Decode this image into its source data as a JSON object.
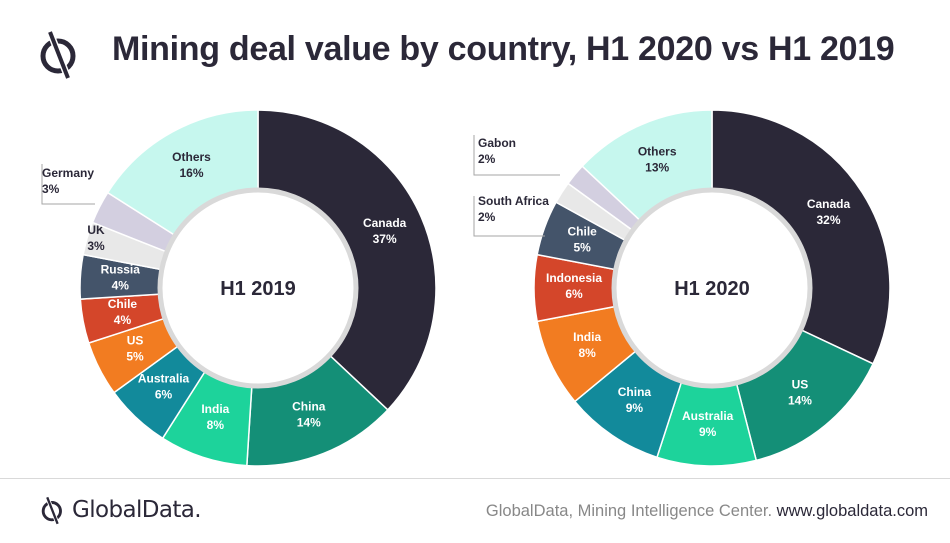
{
  "header": {
    "title": "Mining deal value by country, H1 2020 vs H1 2019"
  },
  "footer": {
    "brand": "GlobalData.",
    "source": "GlobalData, Mining Intelligence Center.",
    "url": "www.globaldata.com"
  },
  "chart_data": [
    {
      "type": "pie",
      "center_label": "H1 2019",
      "slices": [
        {
          "label": "Canada",
          "value": 37,
          "display": "37%",
          "color": "#2b2838",
          "text_color": "#ffffff",
          "callout": false
        },
        {
          "label": "China",
          "value": 14,
          "display": "14%",
          "color": "#148f77",
          "text_color": "#ffffff",
          "callout": false
        },
        {
          "label": "India",
          "value": 8,
          "display": "8%",
          "color": "#1dd39b",
          "text_color": "#ffffff",
          "callout": false
        },
        {
          "label": "Australia",
          "value": 6,
          "display": "6%",
          "color": "#128a9b",
          "text_color": "#ffffff",
          "callout": false
        },
        {
          "label": "US",
          "value": 5,
          "display": "5%",
          "color": "#f27c21",
          "text_color": "#ffffff",
          "callout": false
        },
        {
          "label": "Chile",
          "value": 4,
          "display": "4%",
          "color": "#d4462a",
          "text_color": "#ffffff",
          "callout": false
        },
        {
          "label": "Russia",
          "value": 4,
          "display": "4%",
          "color": "#44546a",
          "text_color": "#ffffff",
          "callout": false
        },
        {
          "label": "UK",
          "value": 3,
          "display": "3%",
          "color": "#e8e8e8",
          "text_color": "#2b2838",
          "callout": false
        },
        {
          "label": "Germany",
          "value": 3,
          "display": "3%",
          "color": "#d3cfe0",
          "text_color": "#2b2838",
          "callout": true
        },
        {
          "label": "Others",
          "value": 16,
          "display": "16%",
          "color": "#c6f7ee",
          "text_color": "#2b2838",
          "callout": false
        }
      ]
    },
    {
      "type": "pie",
      "center_label": "H1 2020",
      "slices": [
        {
          "label": "Canada",
          "value": 32,
          "display": "32%",
          "color": "#2b2838",
          "text_color": "#ffffff",
          "callout": false
        },
        {
          "label": "US",
          "value": 14,
          "display": "14%",
          "color": "#148f77",
          "text_color": "#ffffff",
          "callout": false
        },
        {
          "label": "Australia",
          "value": 9,
          "display": "9%",
          "color": "#1dd39b",
          "text_color": "#ffffff",
          "callout": false
        },
        {
          "label": "China",
          "value": 9,
          "display": "9%",
          "color": "#128a9b",
          "text_color": "#ffffff",
          "callout": false
        },
        {
          "label": "India",
          "value": 8,
          "display": "8%",
          "color": "#f27c21",
          "text_color": "#ffffff",
          "callout": false
        },
        {
          "label": "Indonesia",
          "value": 6,
          "display": "6%",
          "color": "#d4462a",
          "text_color": "#ffffff",
          "callout": false
        },
        {
          "label": "Chile",
          "value": 5,
          "display": "5%",
          "color": "#44546a",
          "text_color": "#ffffff",
          "callout": false
        },
        {
          "label": "South Africa",
          "value": 2,
          "display": "2%",
          "color": "#e8e8e8",
          "text_color": "#2b2838",
          "callout": true
        },
        {
          "label": "Gabon",
          "value": 2,
          "display": "2%",
          "color": "#d3cfe0",
          "text_color": "#2b2838",
          "callout": true
        },
        {
          "label": "Others",
          "value": 13,
          "display": "13%",
          "color": "#c6f7ee",
          "text_color": "#2b2838",
          "callout": false
        }
      ]
    }
  ]
}
